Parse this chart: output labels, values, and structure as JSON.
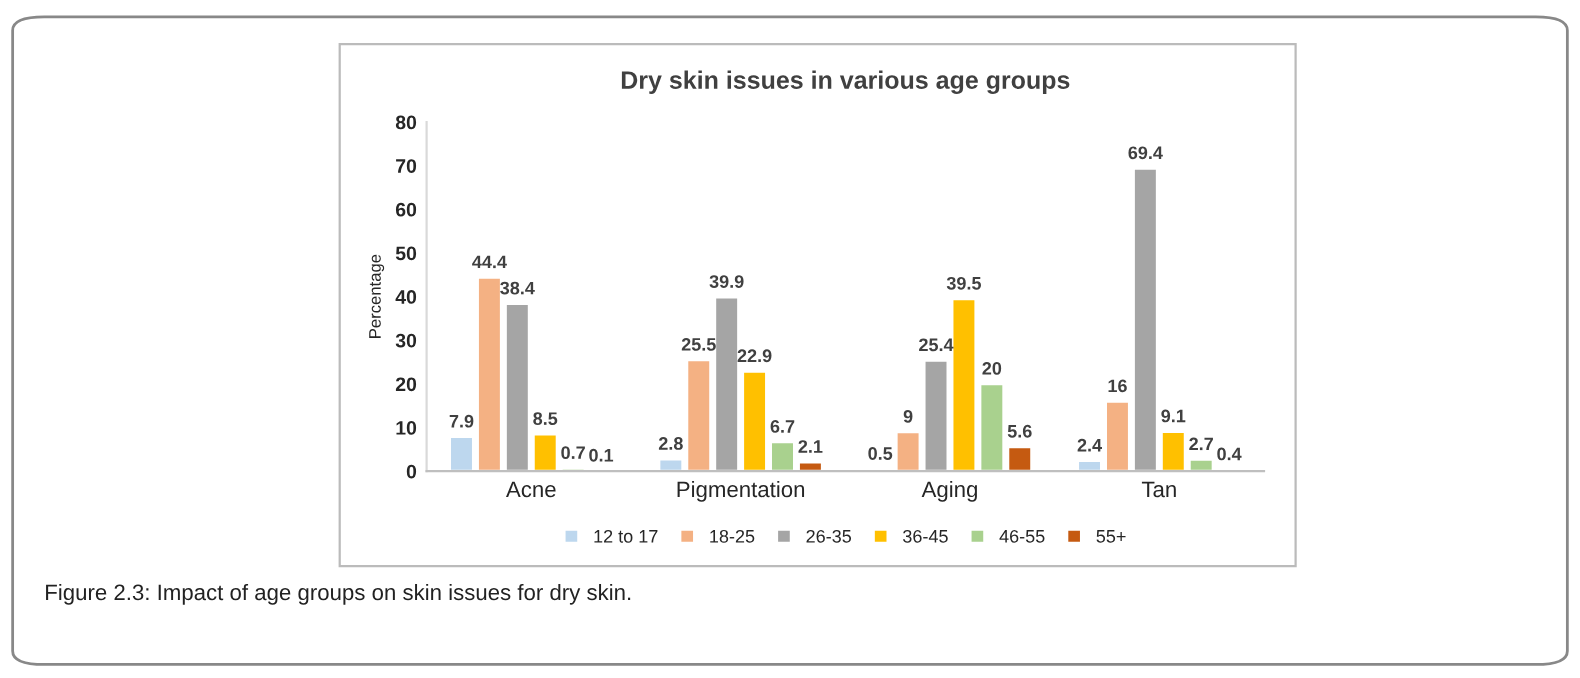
{
  "chart_data": {
    "type": "bar",
    "title": "Dry skin issues in various age groups",
    "ylabel": "Percentage",
    "categories": [
      "Acne",
      "Pigmentation",
      "Aging",
      "Tan"
    ],
    "series": [
      {
        "name": "12 to 17",
        "color": "#bdd7ee",
        "values": [
          7.9,
          2.8,
          0.5,
          2.4
        ]
      },
      {
        "name": "18-25",
        "color": "#f4b183",
        "values": [
          44.4,
          25.5,
          9,
          16
        ]
      },
      {
        "name": "26-35",
        "color": "#a5a5a5",
        "values": [
          38.4,
          39.9,
          25.4,
          69.4
        ]
      },
      {
        "name": "36-45",
        "color": "#ffc000",
        "values": [
          8.5,
          22.9,
          39.5,
          9.1
        ]
      },
      {
        "name": "46-55",
        "color": "#a9d18e",
        "values": [
          0.7,
          6.7,
          20,
          2.7
        ]
      },
      {
        "name": "55+",
        "color": "#c55a11",
        "values": [
          0.1,
          2.1,
          5.6,
          0.4
        ]
      }
    ],
    "ylim": [
      0,
      80
    ],
    "yticks": [
      0,
      10,
      20,
      30,
      40,
      50,
      60,
      70,
      80
    ],
    "grid": false,
    "legend": "bottom",
    "data_labels": true,
    "annotations": [
      "Figure 2.3: Impact of age groups on skin issues for dry skin."
    ]
  }
}
